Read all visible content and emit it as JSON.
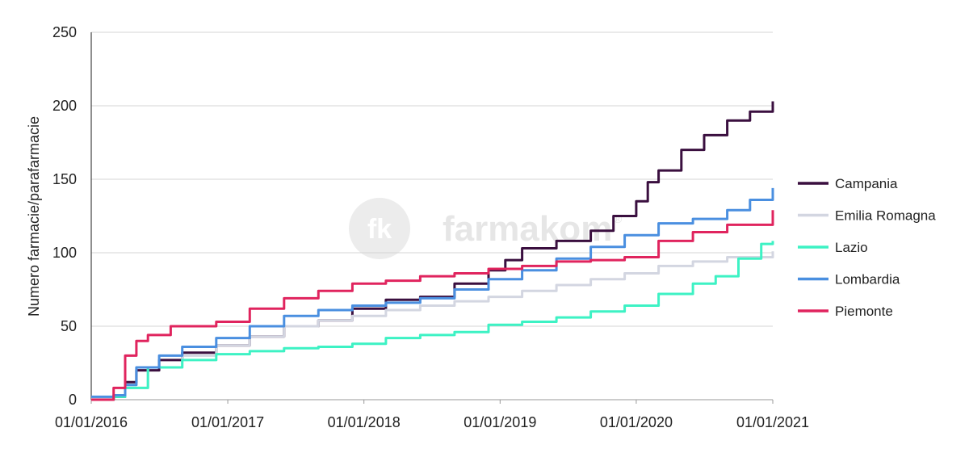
{
  "watermark": {
    "badge": "fk",
    "brand": "farmakom",
    "mark": "®"
  },
  "chart_data": {
    "type": "line",
    "title": "",
    "xlabel": "",
    "ylabel": "Numero farmacie/parafarmacie",
    "ylim": [
      0,
      250
    ],
    "yticks": [
      "0",
      "50",
      "100",
      "150",
      "200",
      "250"
    ],
    "xlim": [
      "2016-01-01",
      "2021-01-01"
    ],
    "xticks": [
      "01/01/2016",
      "01/01/2017",
      "01/01/2018",
      "01/01/2019",
      "01/01/2020",
      "01/01/2021"
    ],
    "grid": "horizontal",
    "legend_position": "right",
    "series": [
      {
        "name": "Campania",
        "color": "#3a0f3f",
        "points": [
          [
            "2016-01-01",
            0
          ],
          [
            "2016-03-01",
            2
          ],
          [
            "2016-04-01",
            12
          ],
          [
            "2016-05-01",
            20
          ],
          [
            "2016-07-01",
            27
          ],
          [
            "2016-09-01",
            32
          ],
          [
            "2016-12-01",
            37
          ],
          [
            "2017-03-01",
            43
          ],
          [
            "2017-06-01",
            50
          ],
          [
            "2017-09-01",
            54
          ],
          [
            "2017-12-01",
            62
          ],
          [
            "2018-03-01",
            68
          ],
          [
            "2018-06-01",
            70
          ],
          [
            "2018-09-01",
            79
          ],
          [
            "2018-12-01",
            88
          ],
          [
            "2019-01-15",
            95
          ],
          [
            "2019-03-01",
            103
          ],
          [
            "2019-06-01",
            108
          ],
          [
            "2019-09-01",
            115
          ],
          [
            "2019-11-01",
            125
          ],
          [
            "2020-01-01",
            135
          ],
          [
            "2020-02-01",
            148
          ],
          [
            "2020-03-01",
            156
          ],
          [
            "2020-05-01",
            170
          ],
          [
            "2020-07-01",
            180
          ],
          [
            "2020-09-01",
            190
          ],
          [
            "2020-11-01",
            196
          ],
          [
            "2021-01-01",
            203
          ]
        ]
      },
      {
        "name": "Emilia Romagna",
        "color": "#d3d6e1",
        "points": [
          [
            "2016-01-01",
            1
          ],
          [
            "2016-03-01",
            3
          ],
          [
            "2016-04-01",
            8
          ],
          [
            "2016-06-01",
            22
          ],
          [
            "2016-09-01",
            30
          ],
          [
            "2016-12-01",
            37
          ],
          [
            "2017-03-01",
            43
          ],
          [
            "2017-06-01",
            50
          ],
          [
            "2017-09-01",
            54
          ],
          [
            "2017-12-01",
            57
          ],
          [
            "2018-03-01",
            61
          ],
          [
            "2018-06-01",
            64
          ],
          [
            "2018-09-01",
            67
          ],
          [
            "2018-12-01",
            70
          ],
          [
            "2019-03-01",
            74
          ],
          [
            "2019-06-01",
            78
          ],
          [
            "2019-09-01",
            82
          ],
          [
            "2019-12-01",
            86
          ],
          [
            "2020-03-01",
            91
          ],
          [
            "2020-06-01",
            94
          ],
          [
            "2020-09-01",
            97
          ],
          [
            "2021-01-01",
            101
          ]
        ]
      },
      {
        "name": "Lazio",
        "color": "#3df2c4",
        "points": [
          [
            "2016-01-01",
            0
          ],
          [
            "2016-03-01",
            2
          ],
          [
            "2016-04-01",
            8
          ],
          [
            "2016-06-01",
            22
          ],
          [
            "2016-09-01",
            27
          ],
          [
            "2016-12-01",
            31
          ],
          [
            "2017-03-01",
            33
          ],
          [
            "2017-06-01",
            35
          ],
          [
            "2017-09-01",
            36
          ],
          [
            "2017-12-01",
            38
          ],
          [
            "2018-03-01",
            42
          ],
          [
            "2018-06-01",
            44
          ],
          [
            "2018-09-01",
            46
          ],
          [
            "2018-12-01",
            51
          ],
          [
            "2019-03-01",
            53
          ],
          [
            "2019-06-01",
            56
          ],
          [
            "2019-09-01",
            60
          ],
          [
            "2019-12-01",
            64
          ],
          [
            "2020-03-01",
            72
          ],
          [
            "2020-06-01",
            79
          ],
          [
            "2020-08-01",
            84
          ],
          [
            "2020-10-01",
            96
          ],
          [
            "2020-12-01",
            106
          ],
          [
            "2021-01-01",
            108
          ]
        ]
      },
      {
        "name": "Lombardia",
        "color": "#4a8fe0",
        "points": [
          [
            "2016-01-01",
            2
          ],
          [
            "2016-03-01",
            3
          ],
          [
            "2016-04-01",
            10
          ],
          [
            "2016-05-01",
            22
          ],
          [
            "2016-07-01",
            30
          ],
          [
            "2016-09-01",
            36
          ],
          [
            "2016-12-01",
            42
          ],
          [
            "2017-03-01",
            50
          ],
          [
            "2017-06-01",
            57
          ],
          [
            "2017-09-01",
            61
          ],
          [
            "2017-12-01",
            64
          ],
          [
            "2018-03-01",
            66
          ],
          [
            "2018-06-01",
            69
          ],
          [
            "2018-09-01",
            75
          ],
          [
            "2018-12-01",
            82
          ],
          [
            "2019-03-01",
            88
          ],
          [
            "2019-06-01",
            96
          ],
          [
            "2019-09-01",
            104
          ],
          [
            "2019-12-01",
            112
          ],
          [
            "2020-03-01",
            120
          ],
          [
            "2020-06-01",
            123
          ],
          [
            "2020-09-01",
            129
          ],
          [
            "2020-11-01",
            136
          ],
          [
            "2021-01-01",
            144
          ]
        ]
      },
      {
        "name": "Piemonte",
        "color": "#e0245e",
        "points": [
          [
            "2016-01-01",
            0
          ],
          [
            "2016-02-15",
            0
          ],
          [
            "2016-03-01",
            8
          ],
          [
            "2016-04-01",
            30
          ],
          [
            "2016-05-01",
            40
          ],
          [
            "2016-06-01",
            44
          ],
          [
            "2016-08-01",
            50
          ],
          [
            "2016-12-01",
            53
          ],
          [
            "2017-03-01",
            62
          ],
          [
            "2017-06-01",
            69
          ],
          [
            "2017-09-01",
            74
          ],
          [
            "2017-12-01",
            79
          ],
          [
            "2018-03-01",
            81
          ],
          [
            "2018-06-01",
            84
          ],
          [
            "2018-09-01",
            86
          ],
          [
            "2018-12-01",
            89
          ],
          [
            "2019-03-01",
            91
          ],
          [
            "2019-06-01",
            94
          ],
          [
            "2019-09-01",
            95
          ],
          [
            "2019-12-01",
            97
          ],
          [
            "2020-03-01",
            108
          ],
          [
            "2020-06-01",
            114
          ],
          [
            "2020-09-01",
            119
          ],
          [
            "2021-01-01",
            129
          ]
        ]
      }
    ]
  }
}
